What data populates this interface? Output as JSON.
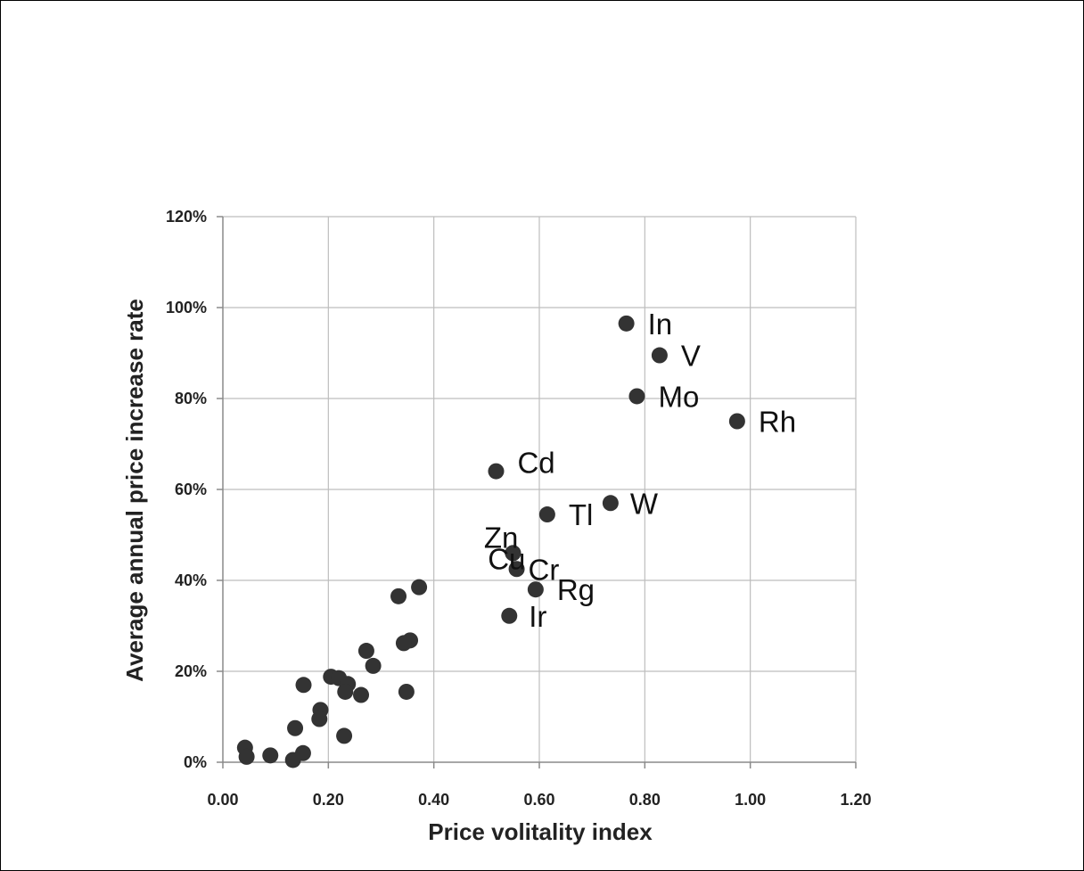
{
  "chart_data": {
    "type": "scatter",
    "title": "",
    "xlabel": "Price volitality index",
    "ylabel": "Average annual price increase rate",
    "xlim": [
      0,
      1.2
    ],
    "ylim": [
      0,
      1.2
    ],
    "x_ticks": [
      0,
      0.2,
      0.4,
      0.6,
      0.8,
      1.0,
      1.2
    ],
    "x_tick_labels": [
      "0.00",
      "0.20",
      "0.40",
      "0.60",
      "0.80",
      "1.00",
      "1.20"
    ],
    "y_ticks": [
      0,
      0.2,
      0.4,
      0.6,
      0.8,
      1.0,
      1.2
    ],
    "y_tick_labels": [
      "0%",
      "20%",
      "40%",
      "60%",
      "80%",
      "100%",
      "120%"
    ],
    "grid": true,
    "legend": "none",
    "marker_color": "#333333",
    "points": [
      {
        "x": 0.765,
        "y": 0.965,
        "label": "In"
      },
      {
        "x": 0.828,
        "y": 0.895,
        "label": "V"
      },
      {
        "x": 0.785,
        "y": 0.805,
        "label": "Mo"
      },
      {
        "x": 0.975,
        "y": 0.75,
        "label": "Rh"
      },
      {
        "x": 0.518,
        "y": 0.64,
        "label": "Cd"
      },
      {
        "x": 0.735,
        "y": 0.57,
        "label": "W"
      },
      {
        "x": 0.615,
        "y": 0.545,
        "label": "Tl"
      },
      {
        "x": 0.55,
        "y": 0.46,
        "label": "Cu"
      },
      {
        "x": 0.557,
        "y": 0.425,
        "label": "Cr"
      },
      {
        "x": 0.55,
        "y": 0.46,
        "label": "Zn"
      },
      {
        "x": 0.593,
        "y": 0.38,
        "label": "Rg"
      },
      {
        "x": 0.543,
        "y": 0.322,
        "label": "Ir"
      },
      {
        "x": 0.372,
        "y": 0.385,
        "label": ""
      },
      {
        "x": 0.333,
        "y": 0.365,
        "label": ""
      },
      {
        "x": 0.355,
        "y": 0.268,
        "label": ""
      },
      {
        "x": 0.343,
        "y": 0.262,
        "label": ""
      },
      {
        "x": 0.272,
        "y": 0.245,
        "label": ""
      },
      {
        "x": 0.285,
        "y": 0.212,
        "label": ""
      },
      {
        "x": 0.205,
        "y": 0.188,
        "label": ""
      },
      {
        "x": 0.22,
        "y": 0.185,
        "label": ""
      },
      {
        "x": 0.237,
        "y": 0.172,
        "label": ""
      },
      {
        "x": 0.153,
        "y": 0.17,
        "label": ""
      },
      {
        "x": 0.232,
        "y": 0.155,
        "label": ""
      },
      {
        "x": 0.348,
        "y": 0.155,
        "label": ""
      },
      {
        "x": 0.262,
        "y": 0.148,
        "label": ""
      },
      {
        "x": 0.185,
        "y": 0.115,
        "label": ""
      },
      {
        "x": 0.183,
        "y": 0.095,
        "label": ""
      },
      {
        "x": 0.137,
        "y": 0.075,
        "label": ""
      },
      {
        "x": 0.23,
        "y": 0.058,
        "label": ""
      },
      {
        "x": 0.042,
        "y": 0.032,
        "label": ""
      },
      {
        "x": 0.045,
        "y": 0.012,
        "label": ""
      },
      {
        "x": 0.09,
        "y": 0.015,
        "label": ""
      },
      {
        "x": 0.152,
        "y": 0.02,
        "label": ""
      },
      {
        "x": 0.133,
        "y": 0.005,
        "label": ""
      }
    ]
  }
}
